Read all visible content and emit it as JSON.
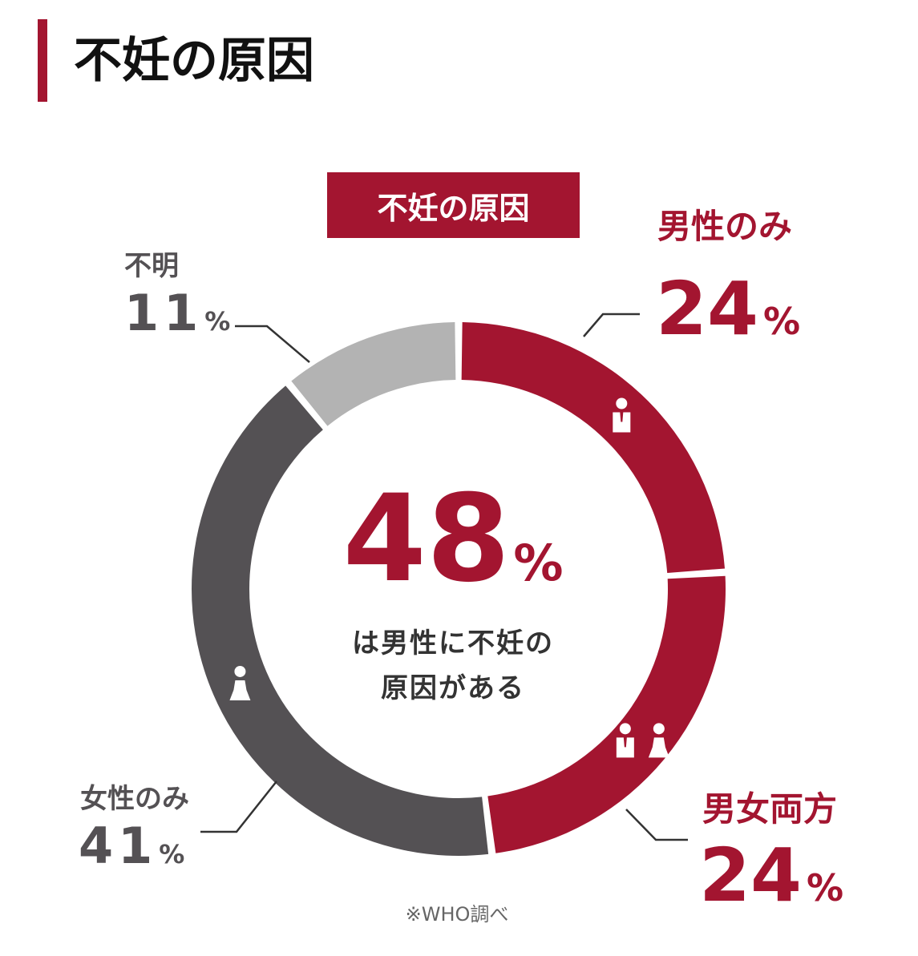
{
  "header": {
    "title": "不妊の原因"
  },
  "colors": {
    "accent": "#a31530",
    "female": "#545154",
    "unknown": "#b3b3b3",
    "dark_text": "#333333",
    "grey_text": "#545154"
  },
  "tag_label": "不妊の原因",
  "labels": {
    "male": {
      "name": "男性のみ",
      "value": "24",
      "unit": "%"
    },
    "both": {
      "name": "男女両方",
      "value": "24",
      "unit": "%"
    },
    "female": {
      "name": "女性のみ",
      "value": "41",
      "unit": "%"
    },
    "unknown": {
      "name": "不明",
      "value": "11",
      "unit": "%"
    }
  },
  "center": {
    "value": "48",
    "unit": "%",
    "caption_line1": "は男性に不妊の",
    "caption_line2": "原因がある"
  },
  "source": "※WHO調べ",
  "chart_data": {
    "type": "pie",
    "title": "不妊の原因",
    "categories": [
      "男性のみ",
      "男女両方",
      "女性のみ",
      "不明"
    ],
    "values": [
      24,
      24,
      41,
      11
    ],
    "unit": "%",
    "legend": "none",
    "icons": [
      "man-icon",
      "couple-icon",
      "woman-icon",
      "none"
    ]
  }
}
